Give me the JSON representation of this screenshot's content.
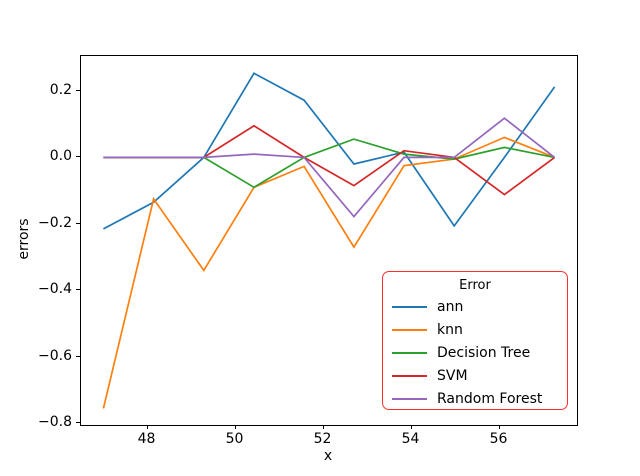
{
  "chart_data": {
    "type": "line",
    "title": "",
    "xlabel": "x",
    "ylabel": "errors",
    "xlim": [
      46.49,
      57.76
    ],
    "ylim": [
      -0.805,
      0.305
    ],
    "grid": false,
    "background_color": "#ffffff",
    "spine_color": "#000000",
    "x": [
      47.0,
      48.14,
      49.28,
      50.42,
      51.56,
      52.69,
      53.83,
      54.97,
      56.11,
      57.25
    ],
    "series": [
      {
        "name": "ann",
        "color": "#1f77b4",
        "values": [
          -0.215,
          -0.135,
          0.0,
          0.253,
          0.172,
          -0.02,
          0.016,
          -0.206,
          0.0,
          0.212
        ]
      },
      {
        "name": "knn",
        "color": "#ff7f0e",
        "values": [
          -0.755,
          -0.125,
          -0.34,
          -0.09,
          -0.027,
          -0.27,
          -0.025,
          -0.005,
          0.06,
          0.0
        ]
      },
      {
        "name": "Decision Tree",
        "color": "#2ca02c",
        "values": [
          0.0,
          0.0,
          0.0,
          -0.09,
          0.0,
          0.055,
          0.01,
          -0.005,
          0.03,
          0.0
        ]
      },
      {
        "name": "SVM",
        "color": "#d62728",
        "values": [
          0.0,
          0.0,
          0.0,
          0.095,
          0.0,
          -0.085,
          0.02,
          0.0,
          -0.112,
          0.0
        ]
      },
      {
        "name": "Random Forest",
        "color": "#9467bd",
        "values": [
          0.0,
          0.0,
          0.0,
          0.01,
          0.0,
          -0.178,
          0.0,
          0.0,
          0.118,
          0.0
        ]
      }
    ],
    "x_ticks": [
      {
        "v": 48,
        "label": "48"
      },
      {
        "v": 50,
        "label": "50"
      },
      {
        "v": 52,
        "label": "52"
      },
      {
        "v": 54,
        "label": "54"
      },
      {
        "v": 56,
        "label": "56"
      }
    ],
    "y_ticks": [
      {
        "v": 0.2,
        "label": "0.2"
      },
      {
        "v": 0.0,
        "label": "0.0"
      },
      {
        "v": -0.2,
        "label": "−0.2"
      },
      {
        "v": -0.4,
        "label": "−0.4"
      },
      {
        "v": -0.6,
        "label": "−0.6"
      },
      {
        "v": -0.8,
        "label": "−0.8"
      }
    ],
    "legend": {
      "title": "Error",
      "position": "lower right",
      "border_color": "#ff2e2e",
      "entries": [
        "ann",
        "knn",
        "Decision Tree",
        "SVM",
        "Random Forest"
      ]
    }
  }
}
